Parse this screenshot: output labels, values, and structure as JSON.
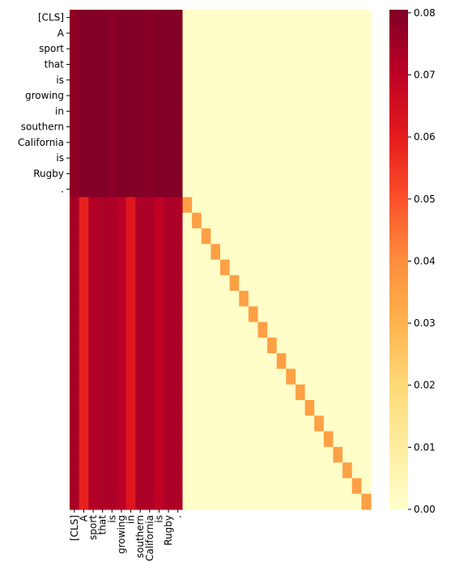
{
  "chart_data": {
    "type": "heatmap",
    "title": "",
    "xlabel": "",
    "ylabel": "",
    "row_labels": [
      "[CLS]",
      "A",
      "sport",
      "that",
      "is",
      "growing",
      "in",
      "southern",
      "California",
      "is",
      "Rugby",
      "."
    ],
    "col_labels": [
      "[CLS]",
      "A",
      "sport",
      "that",
      "is",
      "growing",
      "in",
      "southern",
      "California",
      "is",
      "Rugby",
      "."
    ],
    "n_rows": 32,
    "n_cols": 32,
    "colormap": "YlOrRd",
    "colorbar": {
      "vmin": 0.0,
      "vmax": 0.0805,
      "ticks": [
        0.0,
        0.01,
        0.02,
        0.03,
        0.04,
        0.05,
        0.06,
        0.07,
        0.08
      ],
      "tick_labels": [
        "0.00",
        "0.01",
        "0.02",
        "0.03",
        "0.04",
        "0.05",
        "0.06",
        "0.07",
        "0.08"
      ]
    },
    "token_rows_values": [
      0.078,
      0.08,
      0.08,
      0.08,
      0.079,
      0.08,
      0.08,
      0.08,
      0.079,
      0.08,
      0.08,
      0.08
    ],
    "padding_rows_values": [
      0.074,
      0.059,
      0.072,
      0.073,
      0.073,
      0.071,
      0.062,
      0.073,
      0.073,
      0.07,
      0.073,
      0.073
    ],
    "padding_diagonal_value": 0.035,
    "background_value": 0.001
  }
}
